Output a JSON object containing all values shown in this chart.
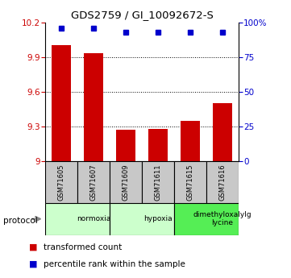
{
  "title": "GDS2759 / GI_10092672-S",
  "samples": [
    "GSM71605",
    "GSM71607",
    "GSM71609",
    "GSM71611",
    "GSM71615",
    "GSM71616"
  ],
  "red_values": [
    10.0,
    9.93,
    9.27,
    9.28,
    9.35,
    9.5
  ],
  "blue_values": [
    96,
    96,
    93,
    93,
    93,
    93
  ],
  "ylim_left": [
    9.0,
    10.2
  ],
  "ylim_right": [
    0,
    100
  ],
  "yticks_left": [
    9.0,
    9.3,
    9.6,
    9.9,
    10.2
  ],
  "ytick_labels_left": [
    "9",
    "9.3",
    "9.6",
    "9.9",
    "10.2"
  ],
  "yticks_right": [
    0,
    25,
    50,
    75,
    100
  ],
  "ytick_labels_right": [
    "0",
    "25",
    "50",
    "75",
    "100%"
  ],
  "groups": [
    {
      "label": "normoxia",
      "start": 0,
      "end": 2,
      "color": "#ccffcc"
    },
    {
      "label": "hypoxia",
      "start": 2,
      "end": 4,
      "color": "#ccffcc"
    },
    {
      "label": "dimethyloxalylg\nlycine",
      "start": 4,
      "end": 6,
      "color": "#55ee55"
    }
  ],
  "bar_color": "#cc0000",
  "dot_color": "#0000cc",
  "sample_box_color": "#c8c8c8",
  "protocol_label": "protocol",
  "legend_items": [
    {
      "color": "#cc0000",
      "label": "transformed count"
    },
    {
      "color": "#0000cc",
      "label": "percentile rank within the sample"
    }
  ]
}
